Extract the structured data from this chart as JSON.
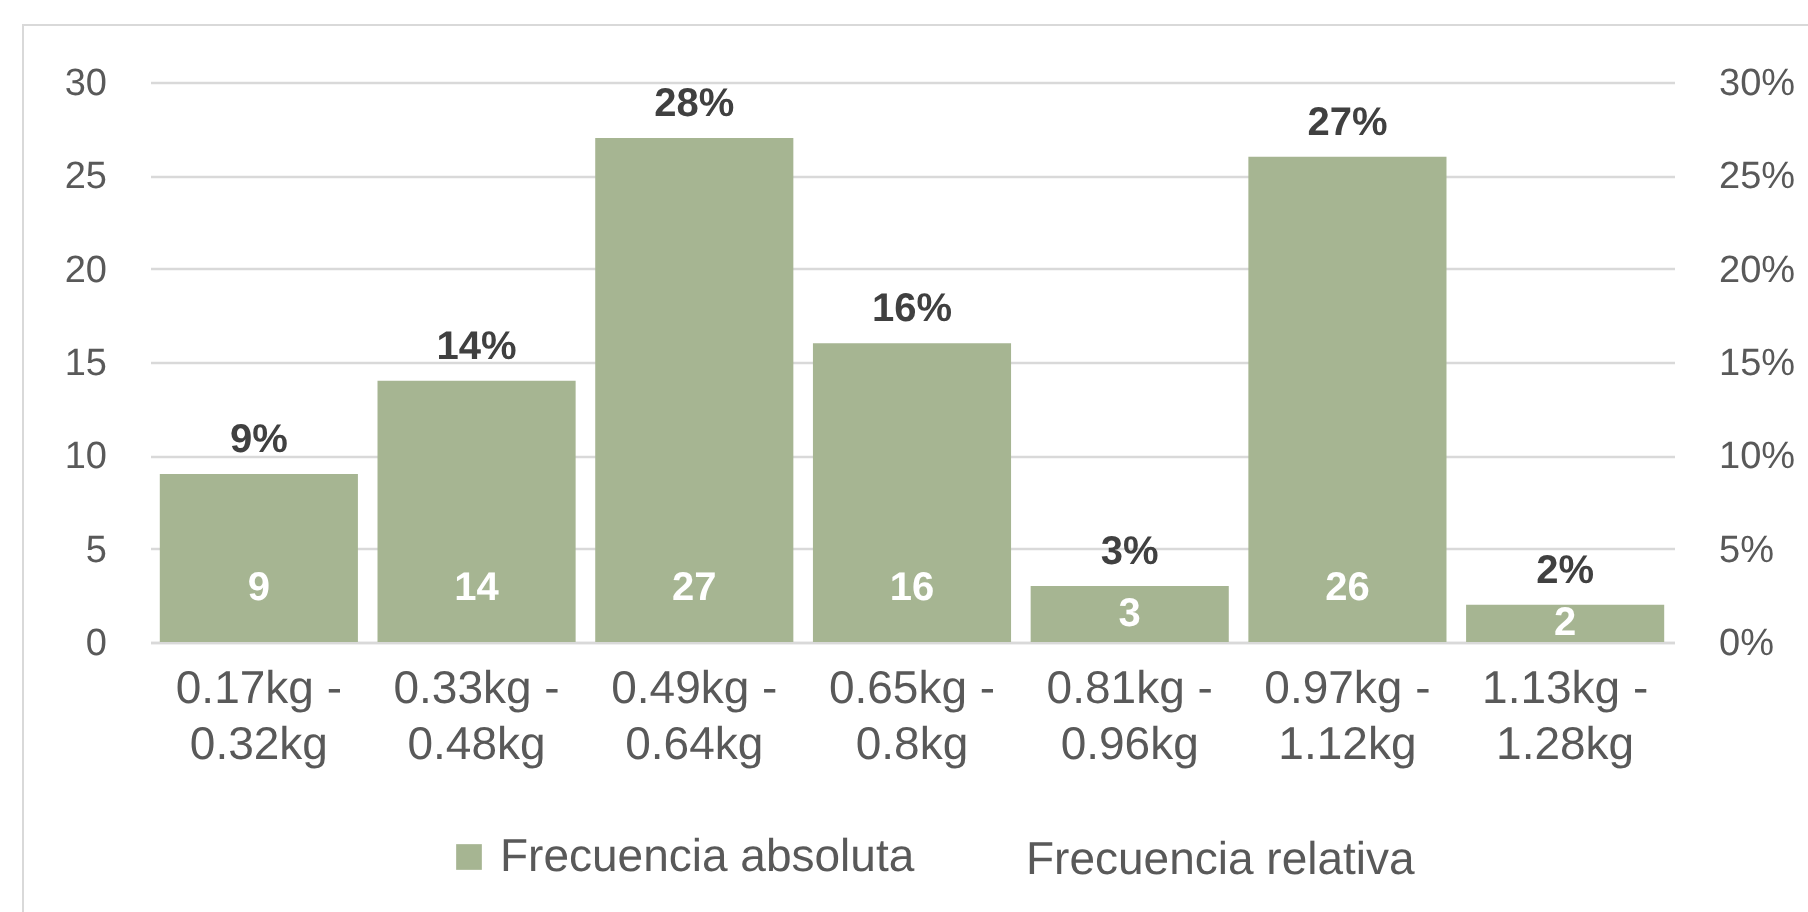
{
  "chart_data": {
    "type": "bar",
    "categories": [
      "0.17kg - 0.32kg",
      "0.33kg - 0.48kg",
      "0.49kg - 0.64kg",
      "0.65kg - 0.8kg",
      "0.81kg - 0.96kg",
      "0.97kg - 1.12kg",
      "1.13kg - 1.28kg"
    ],
    "series": [
      {
        "name": "Frecuencia absoluta",
        "color": "#a6b592",
        "values": [
          9,
          14,
          27,
          16,
          3,
          26,
          2
        ]
      }
    ],
    "data_labels": true,
    "annotations": [
      {
        "text": "9%",
        "x": "0.17kg - 0.32kg",
        "y": 9
      },
      {
        "text": "14%",
        "x": "0.33kg - 0.48kg",
        "y": 14
      },
      {
        "text": "28%",
        "x": "0.49kg - 0.64kg",
        "y": 27
      },
      {
        "text": "16%",
        "x": "0.65kg - 0.8kg",
        "y": 16
      },
      {
        "text": "3%",
        "x": "0.81kg - 0.96kg",
        "y": 3
      },
      {
        "text": "27%",
        "x": "0.97kg - 1.12kg",
        "y": 26
      },
      {
        "text": "2%",
        "x": "1.13kg - 1.28kg",
        "y": 2
      },
      "Frecuencia relativa"
    ],
    "ylim": [
      0,
      30
    ],
    "yticks": [
      0,
      5,
      10,
      15,
      20,
      25,
      30
    ],
    "y2lim": [
      0,
      30
    ],
    "y2ticks": [
      {
        "value": 0,
        "label": "0%"
      },
      {
        "value": 5,
        "label": "5%"
      },
      {
        "value": 10,
        "label": "10%"
      },
      {
        "value": 15,
        "label": "15%"
      },
      {
        "value": 20,
        "label": "20%"
      },
      {
        "value": 25,
        "label": "25%"
      },
      {
        "value": 30,
        "label": "30%"
      }
    ],
    "grid": "y",
    "legend": "bottom"
  }
}
